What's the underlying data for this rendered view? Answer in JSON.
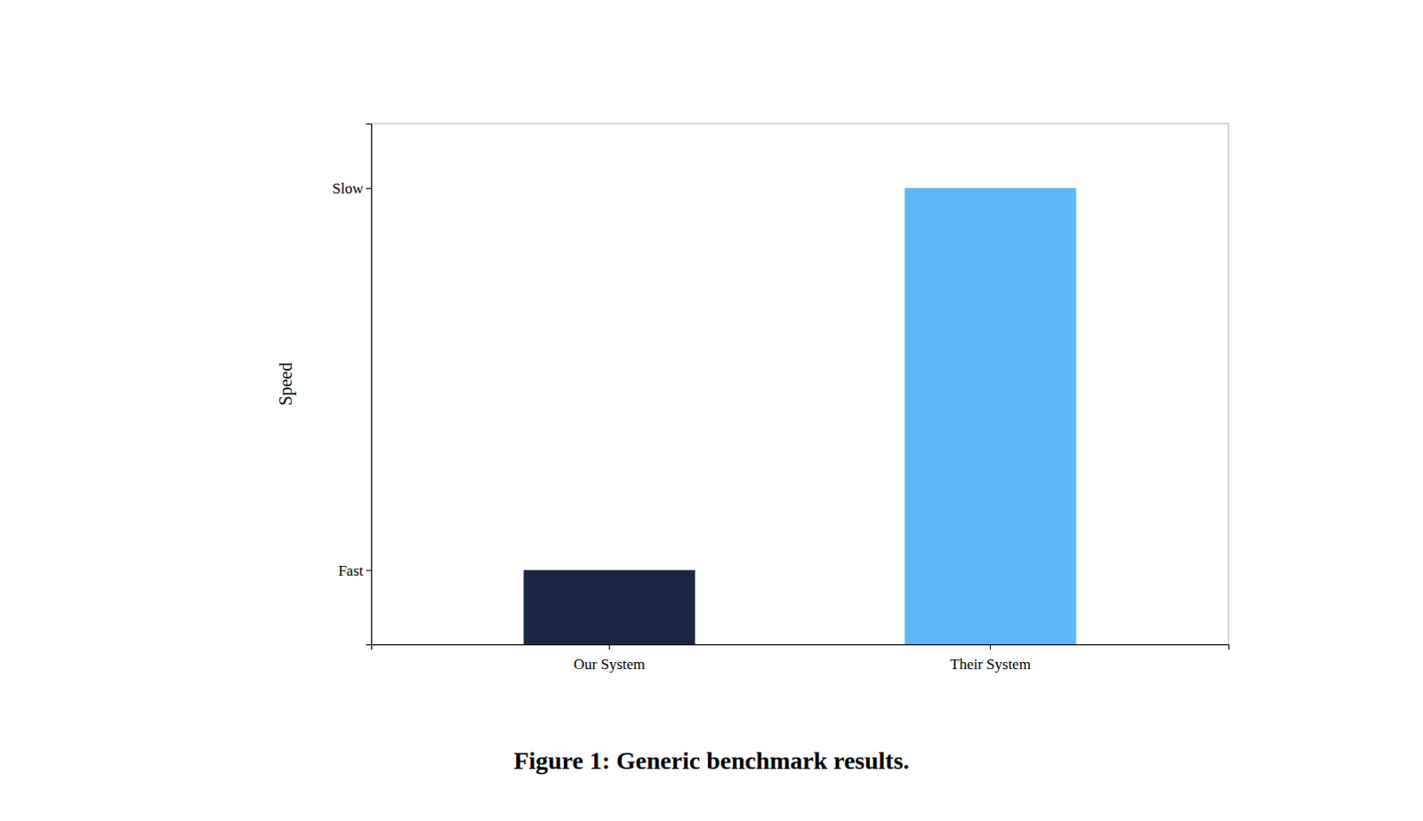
{
  "chart_data": {
    "type": "bar",
    "title": "Figure 1: Generic benchmark results.",
    "ylabel": "Speed",
    "categories": [
      "Our System",
      "Their System"
    ],
    "values": [
      0.15,
      0.92
    ],
    "colors": [
      "#1a2744",
      "#5bb8f5"
    ],
    "ylim": [
      0,
      1.05
    ],
    "yticks": [
      {
        "value": 0.15,
        "label": "Fast"
      },
      {
        "value": 0.92,
        "label": "Slow"
      }
    ],
    "grid": false
  }
}
